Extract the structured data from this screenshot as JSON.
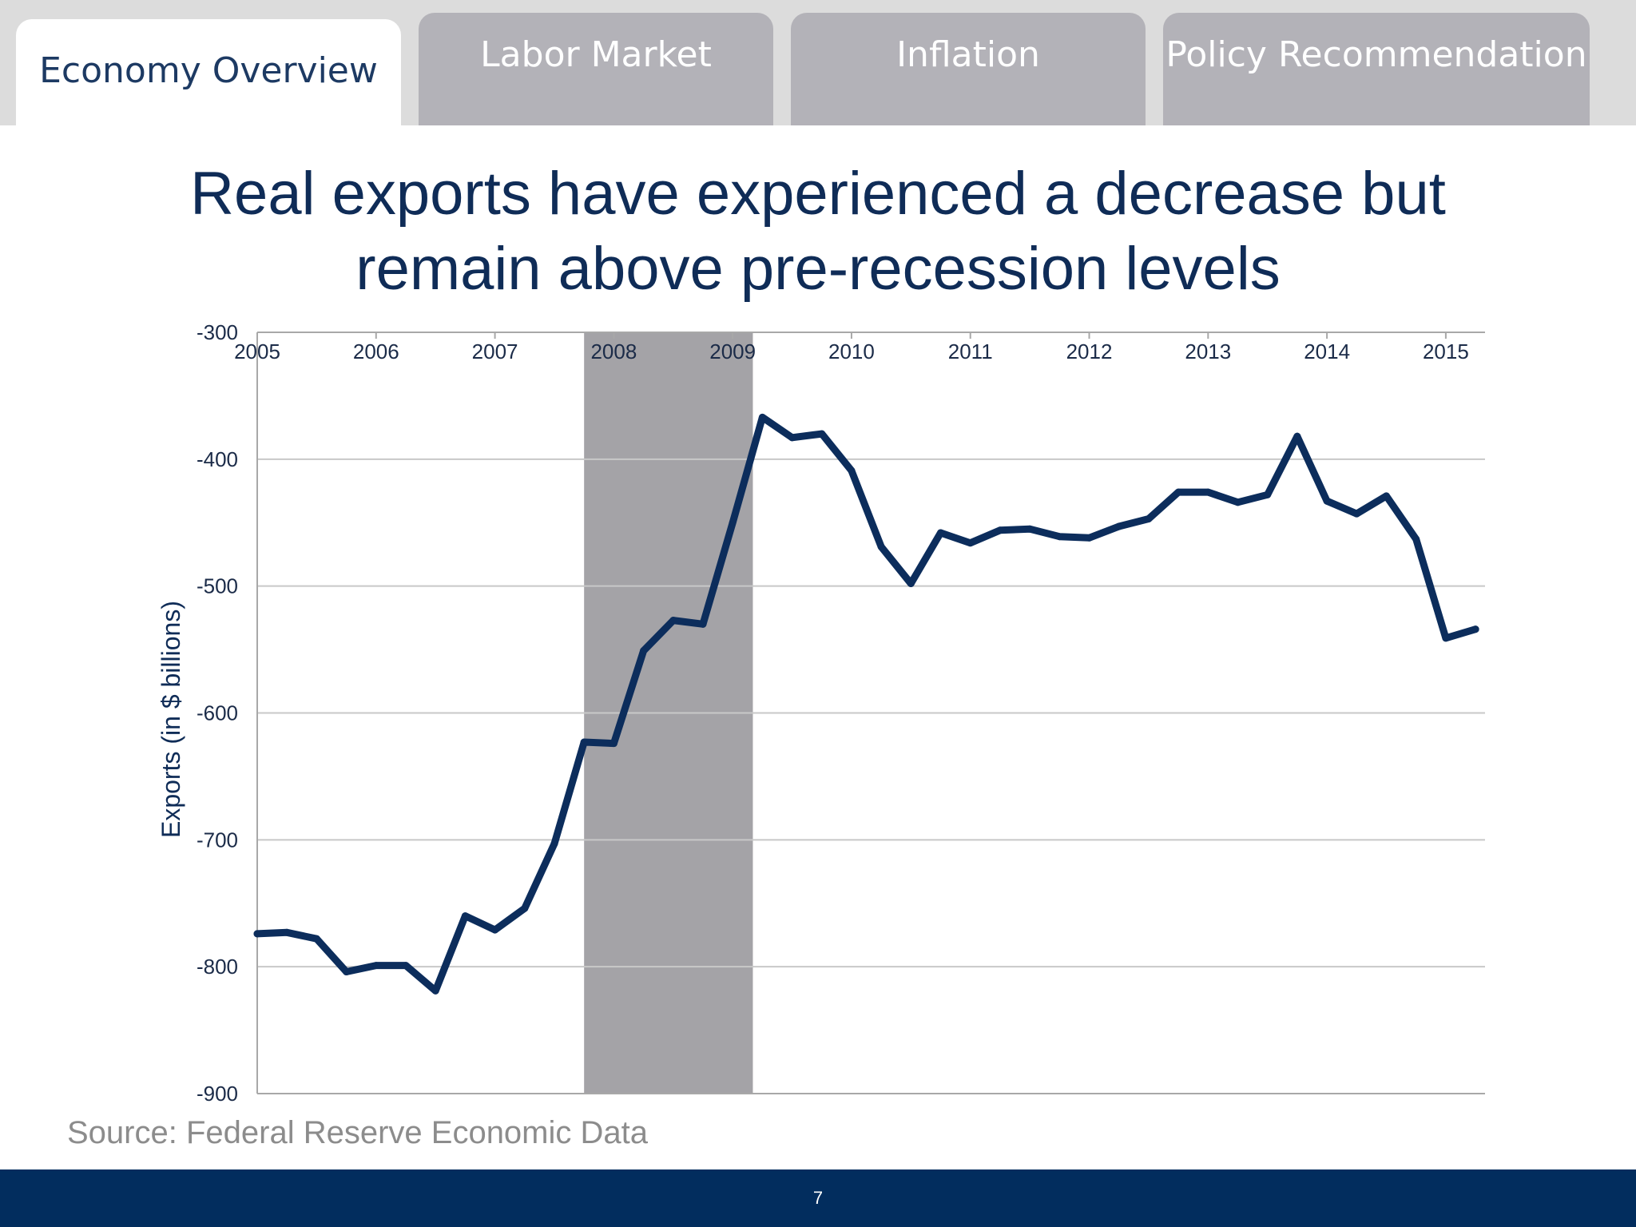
{
  "tabs": [
    {
      "label": "Economy Overview",
      "active": true
    },
    {
      "label": "Labor Market",
      "active": false
    },
    {
      "label": "Inflation",
      "active": false
    },
    {
      "label": "Policy Recommendation",
      "active": false
    }
  ],
  "slide": {
    "title_line1": "Real exports have experienced a decrease but",
    "title_line2": "remain above pre-recession levels",
    "source": "Source: Federal Reserve Economic Data",
    "page_number": "7"
  },
  "colors": {
    "line": "#0c2d5c",
    "recession_band": "#a4a3a7",
    "footer": "#022d5e",
    "title": "#0f2c57"
  },
  "chart_data": {
    "type": "line",
    "title": "",
    "xlabel": "",
    "ylabel": "Exports (in $ billions)",
    "ylim": [
      -900,
      -300
    ],
    "xlim": [
      2005,
      2015.33
    ],
    "yticks": [
      -300,
      -400,
      -500,
      -600,
      -700,
      -800,
      -900
    ],
    "xticks": [
      "2005",
      "2006",
      "2007",
      "2008",
      "2009",
      "2010",
      "2011",
      "2012",
      "2013",
      "2014",
      "2015"
    ],
    "x_axis_position": "top",
    "grid": {
      "horizontal": true,
      "vertical": false
    },
    "recession_shading": {
      "start": 2007.75,
      "end": 2009.17
    },
    "series": [
      {
        "x": [
          2005.0,
          2005.25,
          2005.5,
          2005.75,
          2006.0,
          2006.25,
          2006.5,
          2006.75,
          2007.0,
          2007.25,
          2007.5,
          2007.75,
          2008.0,
          2008.25,
          2008.5,
          2008.75,
          2009.0,
          2009.25,
          2009.5,
          2009.75,
          2010.0,
          2010.25,
          2010.5,
          2010.75,
          2011.0,
          2011.25,
          2011.5,
          2011.75,
          2012.0,
          2012.25,
          2012.5,
          2012.75,
          2013.0,
          2013.25,
          2013.5,
          2013.75,
          2014.0,
          2014.25,
          2014.5,
          2014.75,
          2015.0,
          2015.25
        ],
        "values": [
          -774,
          -773,
          -778,
          -804,
          -799,
          -799,
          -819,
          -760,
          -771,
          -754,
          -703,
          -623,
          -624,
          -551,
          -527,
          -530,
          -450,
          -367,
          -383,
          -380,
          -409,
          -469,
          -498,
          -458,
          -466,
          -456,
          -455,
          -461,
          -462,
          -453,
          -447,
          -426,
          -426,
          -434,
          -428,
          -382,
          -433,
          -443,
          -429,
          -463,
          -541,
          -534
        ]
      }
    ]
  }
}
